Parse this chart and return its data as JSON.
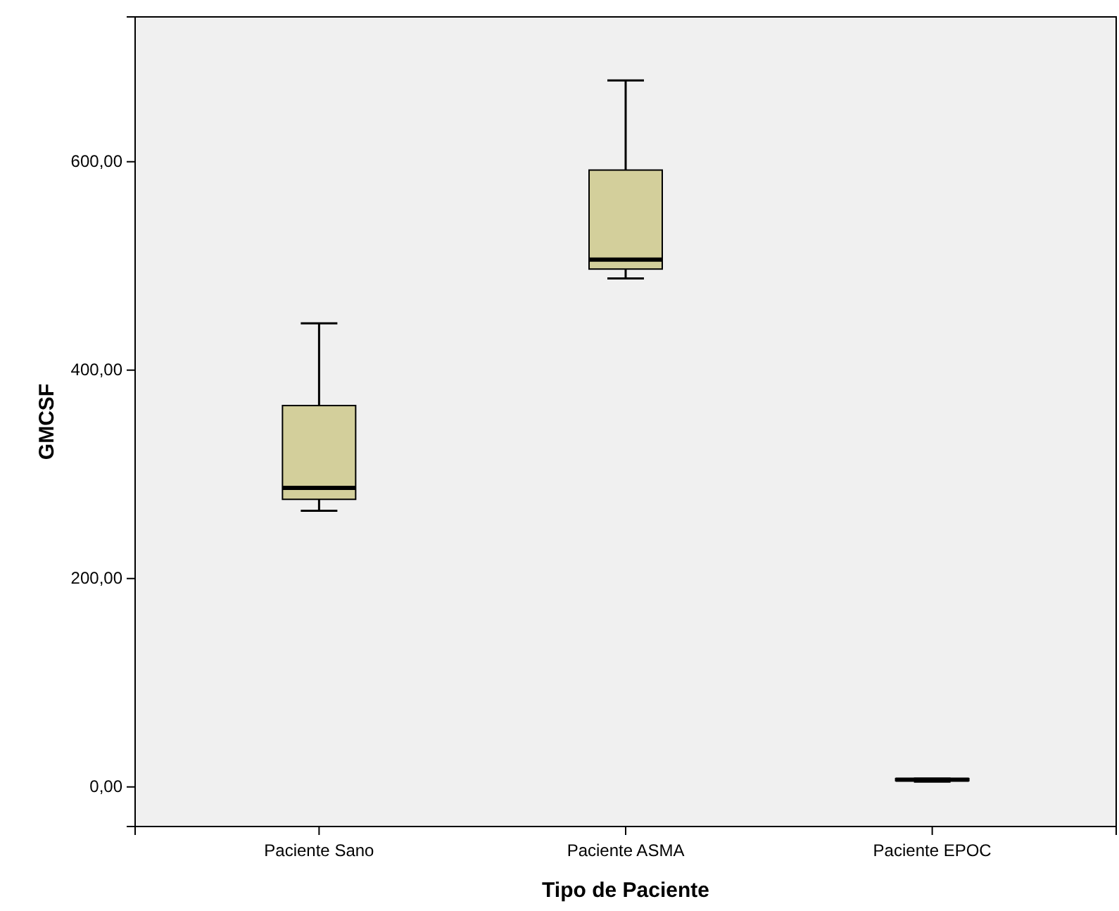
{
  "chart_data": {
    "type": "box",
    "xlabel": "Tipo de Paciente",
    "ylabel": "GMCSF",
    "categories": [
      "Paciente Sano",
      "Paciente ASMA",
      "Paciente EPOC"
    ],
    "boxes": [
      {
        "low": 265,
        "q1": 276,
        "median": 287,
        "q3": 366,
        "high": 445
      },
      {
        "low": 488,
        "q1": 497,
        "median": 506,
        "q3": 592,
        "high": 678
      },
      {
        "low": 5,
        "q1": 6,
        "median": 7,
        "q3": 8,
        "high": 8
      }
    ],
    "color": "#d3cf9b",
    "ylim": [
      -38,
      739
    ],
    "yticks": [
      {
        "value": 0,
        "label": "0,00"
      },
      {
        "value": 200,
        "label": "200,00"
      },
      {
        "value": 400,
        "label": "400,00"
      },
      {
        "value": 600,
        "label": "600,00"
      }
    ],
    "grid": false
  }
}
